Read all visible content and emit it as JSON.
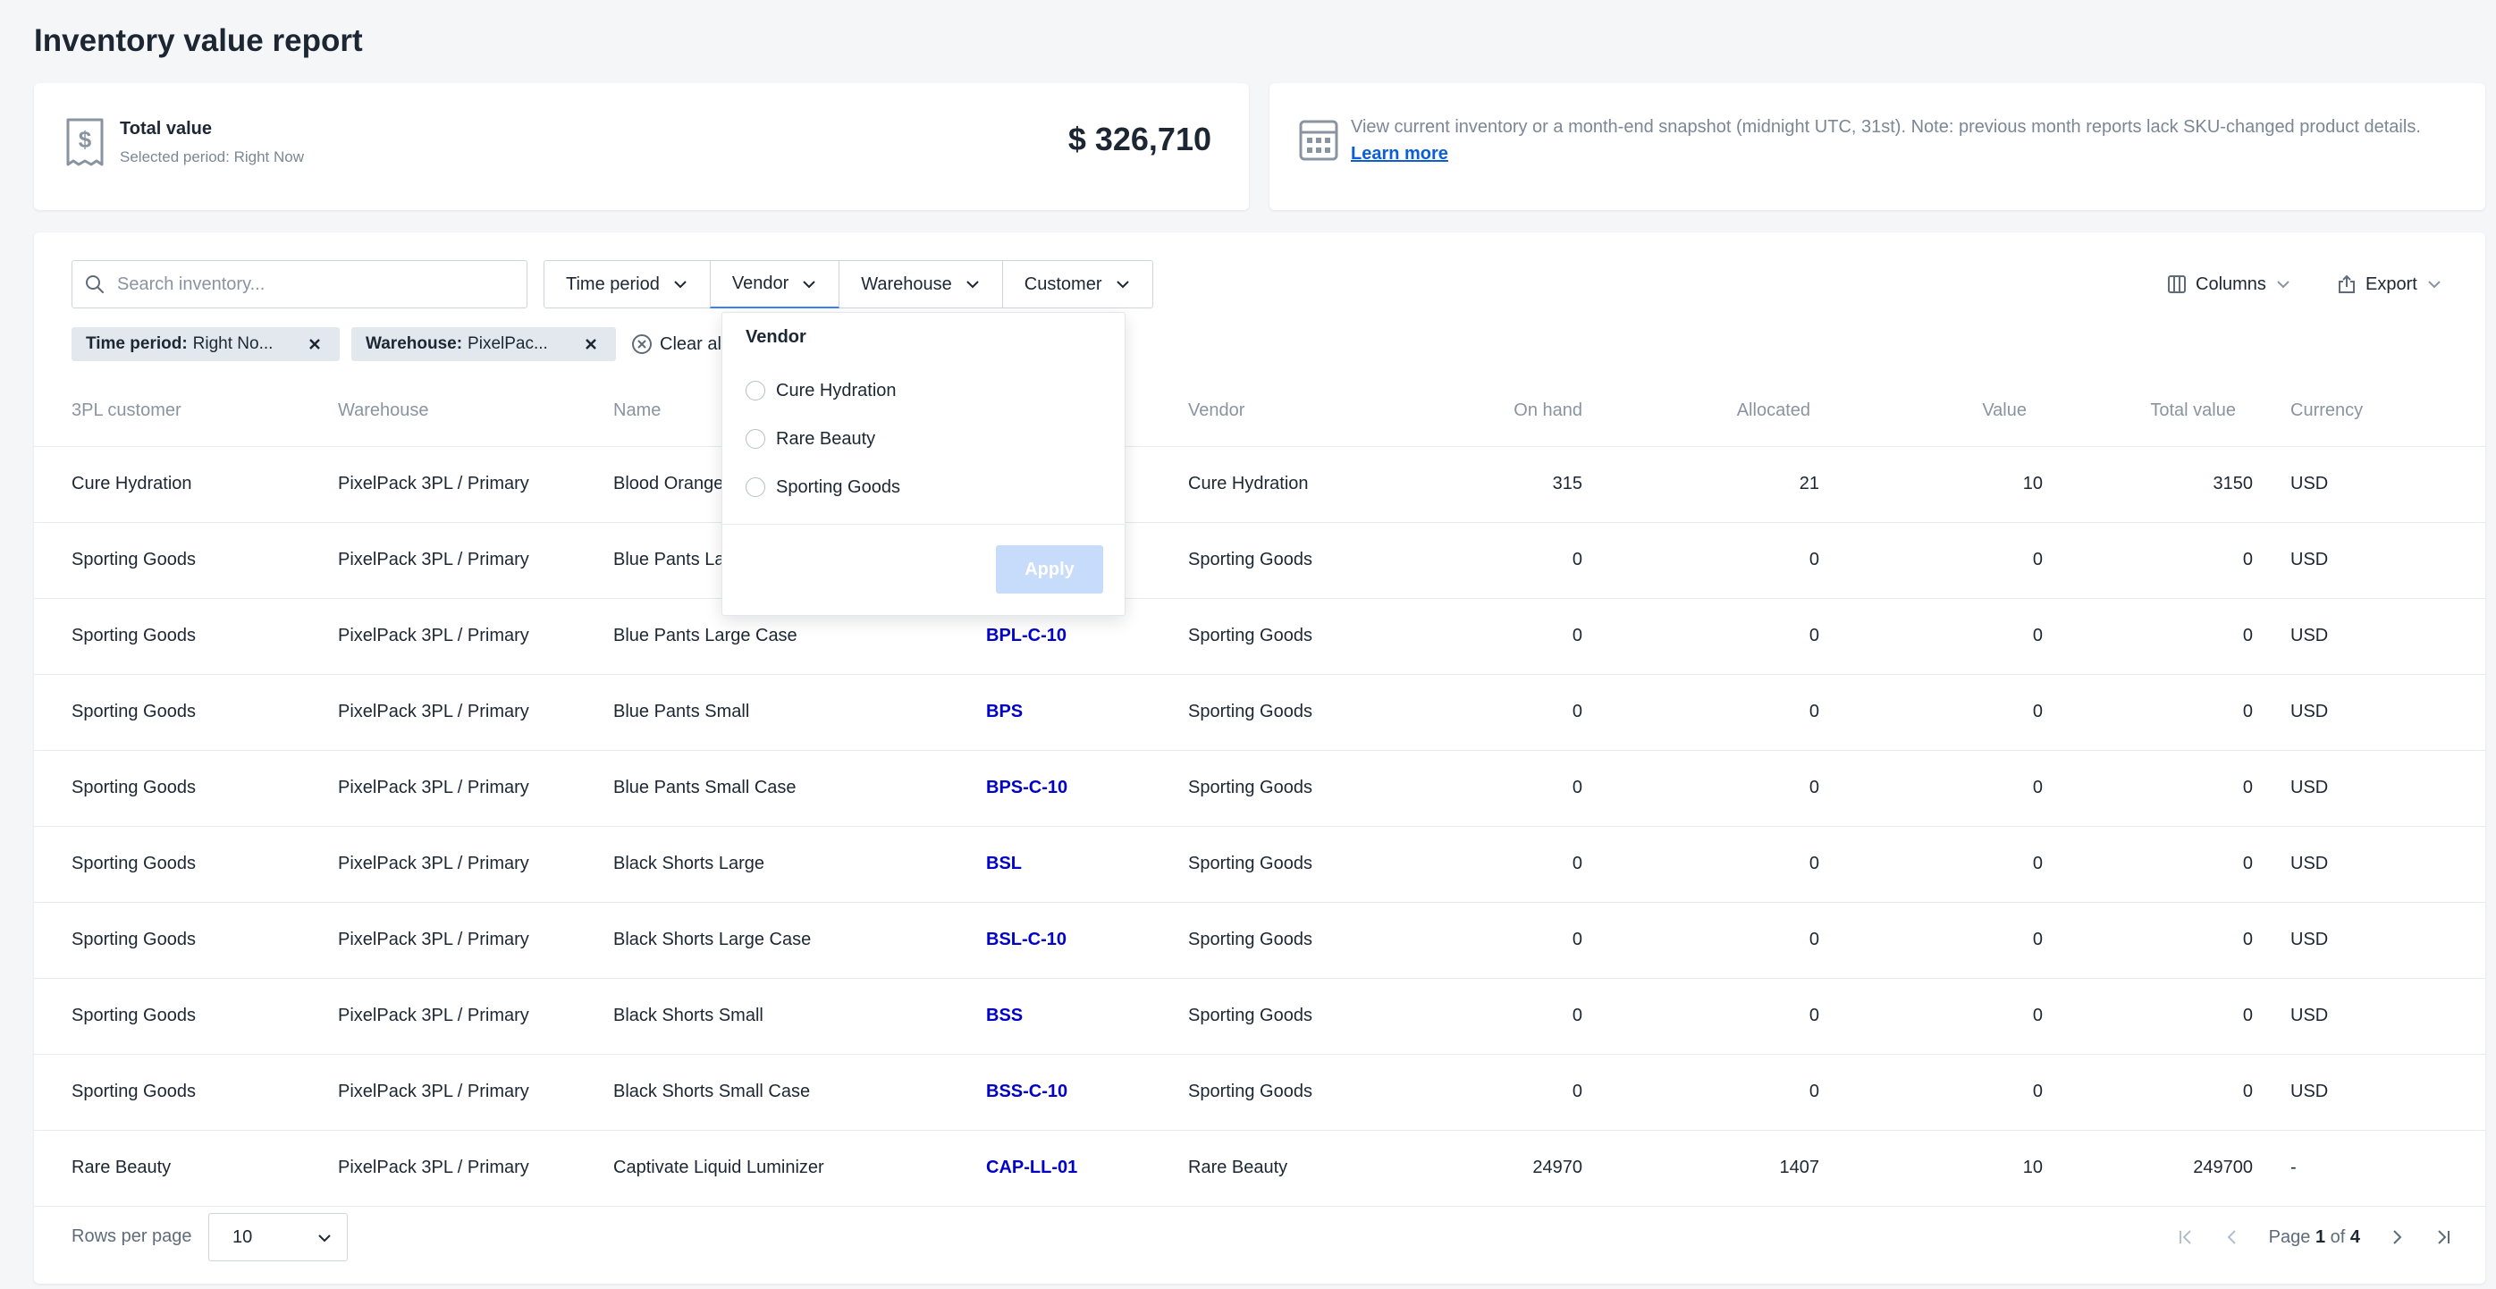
{
  "page": {
    "title": "Inventory value report"
  },
  "total_card": {
    "label": "Total value",
    "sub": "Selected period: Right Now",
    "value": "$ 326,710"
  },
  "info_card": {
    "text": "View current inventory or a month-end snapshot (midnight UTC, 31st). Note: previous month reports lack SKU-changed product details.",
    "link": "Learn more"
  },
  "search": {
    "placeholder": "Search inventory..."
  },
  "filters": [
    {
      "label": "Time period"
    },
    {
      "label": "Vendor"
    },
    {
      "label": "Warehouse"
    },
    {
      "label": "Customer"
    }
  ],
  "toolbar": {
    "columns": "Columns",
    "export": "Export"
  },
  "chips": [
    {
      "key": "Time period:",
      "value": "Right No..."
    },
    {
      "key": "Warehouse:",
      "value": "PixelPac..."
    }
  ],
  "clear_all": "Clear al",
  "columns": [
    "3PL customer",
    "Warehouse",
    "Name",
    "",
    "Vendor",
    "On hand",
    "Allocated",
    "Value",
    "Total value",
    "Currency"
  ],
  "rows": [
    {
      "customer": "Cure Hydration",
      "warehouse": "PixelPack 3PL / Primary",
      "name": "Blood Orange",
      "sku": "",
      "vendor": "Cure Hydration",
      "on_hand": "315",
      "allocated": "21",
      "value": "10",
      "total": "3150",
      "currency": "USD"
    },
    {
      "customer": "Sporting Goods",
      "warehouse": "PixelPack 3PL / Primary",
      "name": "Blue Pants La",
      "sku": "",
      "vendor": "Sporting Goods",
      "on_hand": "0",
      "allocated": "0",
      "value": "0",
      "total": "0",
      "currency": "USD"
    },
    {
      "customer": "Sporting Goods",
      "warehouse": "PixelPack 3PL / Primary",
      "name": "Blue Pants Large Case",
      "sku": "BPL-C-10",
      "vendor": "Sporting Goods",
      "on_hand": "0",
      "allocated": "0",
      "value": "0",
      "total": "0",
      "currency": "USD"
    },
    {
      "customer": "Sporting Goods",
      "warehouse": "PixelPack 3PL / Primary",
      "name": "Blue Pants Small",
      "sku": "BPS",
      "vendor": "Sporting Goods",
      "on_hand": "0",
      "allocated": "0",
      "value": "0",
      "total": "0",
      "currency": "USD"
    },
    {
      "customer": "Sporting Goods",
      "warehouse": "PixelPack 3PL / Primary",
      "name": "Blue Pants Small Case",
      "sku": "BPS-C-10",
      "vendor": "Sporting Goods",
      "on_hand": "0",
      "allocated": "0",
      "value": "0",
      "total": "0",
      "currency": "USD"
    },
    {
      "customer": "Sporting Goods",
      "warehouse": "PixelPack 3PL / Primary",
      "name": "Black Shorts Large",
      "sku": "BSL",
      "vendor": "Sporting Goods",
      "on_hand": "0",
      "allocated": "0",
      "value": "0",
      "total": "0",
      "currency": "USD"
    },
    {
      "customer": "Sporting Goods",
      "warehouse": "PixelPack 3PL / Primary",
      "name": "Black Shorts Large Case",
      "sku": "BSL-C-10",
      "vendor": "Sporting Goods",
      "on_hand": "0",
      "allocated": "0",
      "value": "0",
      "total": "0",
      "currency": "USD"
    },
    {
      "customer": "Sporting Goods",
      "warehouse": "PixelPack 3PL / Primary",
      "name": "Black Shorts Small",
      "sku": "BSS",
      "vendor": "Sporting Goods",
      "on_hand": "0",
      "allocated": "0",
      "value": "0",
      "total": "0",
      "currency": "USD"
    },
    {
      "customer": "Sporting Goods",
      "warehouse": "PixelPack 3PL / Primary",
      "name": "Black Shorts Small Case",
      "sku": "BSS-C-10",
      "vendor": "Sporting Goods",
      "on_hand": "0",
      "allocated": "0",
      "value": "0",
      "total": "0",
      "currency": "USD"
    },
    {
      "customer": "Rare Beauty",
      "warehouse": "PixelPack 3PL / Primary",
      "name": "Captivate Liquid Luminizer",
      "sku": "CAP-LL-01",
      "vendor": "Rare Beauty",
      "on_hand": "24970",
      "allocated": "1407",
      "value": "10",
      "total": "249700",
      "currency": "-"
    }
  ],
  "footer": {
    "rows_per_page_label": "Rows per page",
    "rows_per_page": "10",
    "page_prefix": "Page",
    "page_current": "1",
    "page_of": "of",
    "page_total": "4"
  },
  "vendor_dropdown": {
    "title": "Vendor",
    "options": [
      "Cure Hydration",
      "Rare Beauty",
      "Sporting Goods"
    ],
    "apply": "Apply"
  }
}
